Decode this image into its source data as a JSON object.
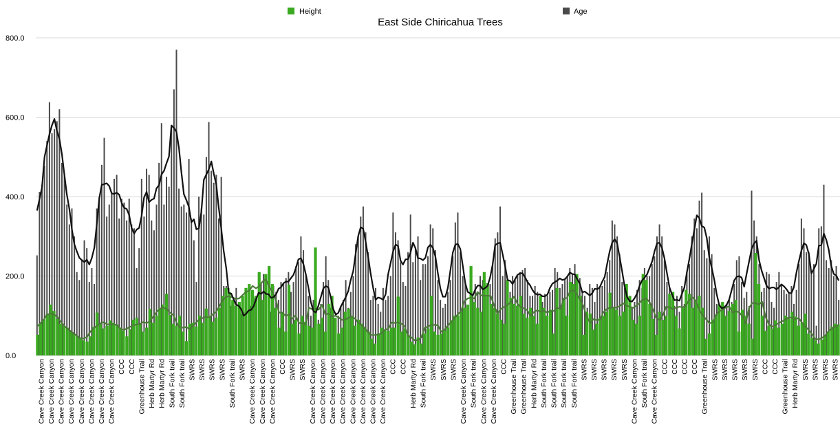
{
  "chart_data": {
    "type": "bar",
    "title": "East Side Chiricahua Trees",
    "ylim": [
      0,
      800
    ],
    "yticks": [
      "0.0",
      "200.0",
      "400.0",
      "600.0",
      "800.0"
    ],
    "legend": {
      "placement": "top",
      "items": [
        {
          "name": "Height",
          "color": "#3aaa20"
        },
        {
          "name": "Age",
          "color": "#4a4a4a"
        }
      ]
    },
    "colors": {
      "height_bar": "#3aaa20",
      "age_bar": "#4a4a4a",
      "age_line": "#111111",
      "height_line": "#4d7a3a"
    },
    "trendlines": [
      "Age (moving average)",
      "Height (moving average)"
    ],
    "visible_category_labels": [
      "Cave Creek Canyon",
      "Cave Creek Canyon",
      "Cave Creek Canyon",
      "Cave Creek Canyon",
      "Cave Creek Canyon",
      "Cave Creek Canyon",
      "Cave Creek Canyon",
      "Cave Creek Canyon",
      "CCC",
      "CCC",
      "Greenhouse Trail",
      "Herb Martyr Rd",
      "Herb Martyr Rd",
      "South Fork trail",
      "South Fork trail",
      "SWRS",
      "SWRS",
      "SWRS",
      "SWRS",
      "South Fork trail",
      "SWRS",
      "Cave Creek Canyon",
      "Cave Creek Canyon",
      "Cave Creek Canyon",
      "CCC",
      "SWRS",
      "SWRS",
      "Cave Creek Canyon",
      "Cave Creek Canyon",
      "Cave Creek Canyon",
      "Cave Creek Canyon",
      "Cave Creek Canyon",
      "Cave Creek Canyon",
      "Cave Creek Canyon",
      "Cave Creek Canyon",
      "CCC",
      "CCC",
      "Herb Martyr Rd",
      "South Fork trail",
      "SWRS",
      "SWRS",
      "SWRS",
      "Cave Creek Canyon",
      "South Fork trail",
      "Cave Creek Canyon",
      "Cave Creek Canyon",
      "CCC",
      "Greenhouse Trail",
      "Greenhouse Trail",
      "Herb Martyr Rd",
      "South Fork trail",
      "South Fork trail",
      "South Fork trail",
      "South Fork trail",
      "SWRS",
      "SWRS",
      "SWRS",
      "SWRS",
      "SWRS",
      "Cave Creek Canyon",
      "South Fork trail",
      "Cave Creek Canyon",
      "CCC",
      "CCC",
      "CCC",
      "CCC",
      "Greenhouse Trail",
      "SWRS",
      "SWRS",
      "SWRS",
      "SWRS",
      "SWRS",
      "CCC",
      "CCC",
      "Greenhouse Trail",
      "Herb Martyr Rd",
      "SWRS",
      "SWRS",
      "SWRS",
      "SWRS"
    ],
    "series": [
      {
        "name": "Height",
        "values": [
          52,
          80,
          90,
          105,
          128,
          112,
          92,
          80,
          74,
          70,
          60,
          55,
          48,
          42,
          38,
          35,
          48,
          72,
          108,
          80,
          68,
          75,
          88,
          82,
          78,
          70,
          62,
          48,
          66,
          90,
          95,
          80,
          60,
          70,
          117,
          82,
          100,
          120,
          128,
          155,
          102,
          80,
          75,
          100,
          60,
          36,
          80,
          82,
          73,
          100,
          82,
          118,
          100,
          85,
          95,
          120,
          150,
          170,
          160,
          140,
          125,
          135,
          150,
          170,
          180,
          165,
          150,
          210,
          140,
          205,
          225,
          180,
          120,
          70,
          110,
          60,
          178,
          80,
          90,
          55,
          100,
          85,
          75,
          70,
          272,
          80,
          95,
          60,
          130,
          150,
          95,
          55,
          70,
          110,
          118,
          100,
          75,
          90,
          80,
          70,
          60,
          42,
          30,
          55,
          70,
          65,
          62,
          70,
          70,
          148,
          60,
          68,
          52,
          35,
          28,
          45,
          30,
          55,
          68,
          150,
          60,
          52,
          55,
          62,
          70,
          88,
          100,
          100,
          110,
          120,
          128,
          225,
          135,
          120,
          110,
          210,
          182,
          130,
          120,
          105,
          90,
          80,
          190,
          145,
          130,
          125,
          150,
          105,
          95,
          120,
          100,
          80,
          150,
          120,
          100,
          115,
          55,
          170,
          120,
          140,
          100,
          185,
          180,
          205,
          150,
          52,
          110,
          105,
          65,
          80,
          95,
          100,
          110,
          158,
          120,
          115,
          100,
          110,
          180,
          150,
          90,
          80,
          100,
          205,
          190,
          130,
          92,
          52,
          110,
          90,
          100,
          155,
          160,
          100,
          68,
          120,
          165,
          155,
          120,
          140,
          150,
          120,
          42,
          55,
          90,
          100,
          128,
          135,
          100,
          112,
          130,
          140,
          60,
          115,
          100,
          80,
          42,
          258,
          180,
          100,
          62,
          75,
          68,
          88,
          70,
          80,
          100,
          92,
          110,
          98,
          75,
          82,
          105,
          55,
          45,
          38,
          30,
          40,
          50,
          60,
          72,
          80,
          78
        ]
      },
      {
        "name": "Age",
        "values": [
          252,
          412,
          430,
          478,
          540,
          638,
          560,
          570,
          590,
          620,
          485,
          460,
          380,
          330,
          370,
          300,
          210,
          190,
          240,
          290,
          270,
          185,
          220,
          180,
          370,
          400,
          480,
          548,
          350,
          380,
          410,
          445,
          455,
          345,
          395,
          385,
          340,
          395,
          330,
          320,
          220,
          270,
          445,
          350,
          470,
          455,
          340,
          315,
          380,
          485,
          585,
          380,
          450,
          425,
          580,
          670,
          770,
          420,
          375,
          380,
          360,
          495,
          345,
          290,
          185,
          400,
          370,
          355,
          500,
          588,
          465,
          435,
          455,
          345,
          450,
          175,
          175,
          170,
          125,
          140,
          170,
          100,
          105,
          110,
          95,
          90,
          125,
          145,
          120,
          140,
          180,
          205,
          130,
          150,
          110,
          175,
          160,
          140,
          185,
          180,
          195,
          210,
          160,
          185,
          225,
          235,
          300,
          265,
          200,
          150,
          100,
          140,
          80,
          90,
          130,
          185,
          250,
          190,
          120,
          110,
          60,
          100,
          125,
          140,
          190,
          120,
          160,
          200,
          280,
          300,
          350,
          375,
          310,
          260,
          140,
          150,
          170,
          130,
          110,
          170,
          140,
          150,
          200,
          360,
          310,
          290,
          235,
          185,
          175,
          260,
          355,
          235,
          270,
          300,
          190,
          230,
          230,
          250,
          330,
          320,
          265,
          190,
          140,
          120,
          130,
          160,
          190,
          250,
          335,
          360,
          260,
          200,
          185,
          125,
          140,
          150,
          180,
          160,
          200,
          190,
          150,
          130,
          180,
          230,
          295,
          310,
          375,
          200,
          240,
          150,
          160,
          200,
          190,
          200,
          210,
          215,
          220,
          190,
          150,
          150,
          175,
          160,
          145,
          135,
          155,
          150,
          160,
          165,
          220,
          210,
          170,
          180,
          190,
          200,
          220,
          205,
          230,
          170,
          195,
          160,
          150,
          120,
          180,
          170,
          135,
          180,
          175,
          175,
          190,
          210,
          240,
          340,
          330,
          300,
          255,
          185,
          170,
          150,
          110,
          120,
          135,
          165,
          190,
          170,
          220,
          200,
          200,
          230,
          250,
          300,
          330,
          300,
          240,
          185,
          170,
          140,
          125,
          150,
          110,
          175,
          130,
          210,
          230,
          300,
          345,
          320,
          390,
          410,
          265,
          245,
          300,
          255,
          170,
          130,
          100,
          115,
          120,
          130,
          140,
          135,
          180,
          240,
          250,
          185,
          145,
          160,
          125,
          415,
          340,
          300,
          230,
          160,
          170,
          210,
          205,
          135,
          120,
          185,
          210,
          180,
          165,
          155,
          160,
          175,
          130,
          165,
          230,
          345,
          320,
          260,
          260,
          205,
          230,
          75,
          320,
          325,
          430,
          240,
          220,
          240,
          200,
          225,
          140
        ]
      }
    ]
  }
}
